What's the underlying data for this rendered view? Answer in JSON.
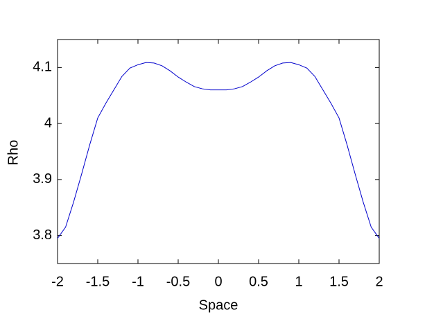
{
  "chart_data": {
    "type": "line",
    "x_label": "Space",
    "y_label": "Rho",
    "x": [
      -2,
      -1.9,
      -1.8,
      -1.7,
      -1.6,
      -1.5,
      -1.4,
      -1.3,
      -1.2,
      -1.1,
      -1,
      -0.9,
      -0.8,
      -0.7,
      -0.6,
      -0.5,
      -0.4,
      -0.3,
      -0.2,
      -0.1,
      0,
      0.1,
      0.2,
      0.3,
      0.4,
      0.5,
      0.6,
      0.7,
      0.8,
      0.9,
      1,
      1.1,
      1.2,
      1.3,
      1.4,
      1.5,
      1.6,
      1.7,
      1.8,
      1.9,
      2
    ],
    "series": [
      {
        "color": "#0000cc",
        "values": [
          3.795,
          3.815,
          3.86,
          3.91,
          3.962,
          4.01,
          4.036,
          4.06,
          4.084,
          4.099,
          4.105,
          4.109,
          4.108,
          4.103,
          4.094,
          4.083,
          4.074,
          4.066,
          4.062,
          4.06,
          4.06,
          4.06,
          4.062,
          4.066,
          4.074,
          4.083,
          4.094,
          4.103,
          4.108,
          4.109,
          4.105,
          4.099,
          4.084,
          4.06,
          4.036,
          4.01,
          3.962,
          3.91,
          3.86,
          3.815,
          3.795
        ]
      }
    ],
    "xlim": [
      -2,
      2
    ],
    "xticks": [
      -2,
      -1.5,
      -1,
      -0.5,
      0,
      0.5,
      1,
      1.5,
      2
    ],
    "ylim": [
      3.75,
      4.15
    ],
    "yticks": [
      3.8,
      3.9,
      4,
      4.1
    ]
  }
}
